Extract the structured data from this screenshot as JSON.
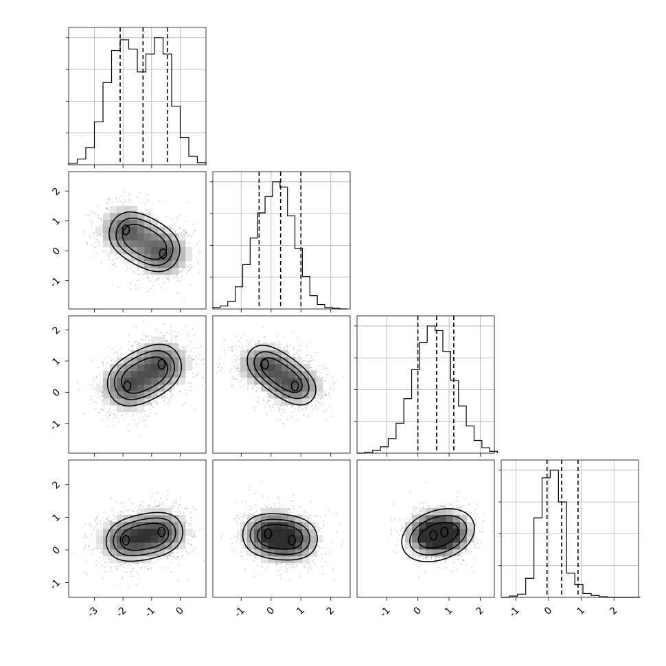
{
  "chart_data": {
    "type": "corner",
    "parameters": 4,
    "ranges": [
      [
        -3.9,
        0.9
      ],
      [
        -1.95,
        2.65
      ],
      [
        -1.95,
        2.45
      ],
      [
        -1.45,
        2.75
      ]
    ],
    "ticks": [
      [
        -3,
        -2,
        -1,
        0
      ],
      [
        -1,
        0,
        1,
        2
      ],
      [
        -1,
        0,
        1,
        2
      ],
      [
        -1,
        0,
        1,
        2
      ]
    ],
    "hist_bin_edges": [
      [
        -3.9,
        -3.6,
        -3.3,
        -3.0,
        -2.7,
        -2.4,
        -2.1,
        -1.8,
        -1.5,
        -1.2,
        -0.9,
        -0.6,
        -0.3,
        0.0,
        0.3,
        0.6,
        0.9
      ],
      [
        -1.95,
        -1.7,
        -1.45,
        -1.2,
        -0.95,
        -0.7,
        -0.45,
        -0.2,
        0.05,
        0.3,
        0.55,
        0.8,
        1.05,
        1.3,
        1.55,
        1.8,
        2.05,
        2.3,
        2.55
      ],
      [
        -1.95,
        -1.7,
        -1.45,
        -1.2,
        -0.95,
        -0.7,
        -0.45,
        -0.2,
        0.05,
        0.3,
        0.55,
        0.8,
        1.05,
        1.3,
        1.55,
        1.8,
        2.05,
        2.3,
        2.55
      ],
      [
        -1.45,
        -1.2,
        -0.95,
        -0.7,
        -0.45,
        -0.2,
        0.05,
        0.3,
        0.55,
        0.8,
        1.05,
        1.3,
        1.55,
        1.8,
        2.05,
        2.3,
        2.55,
        2.8
      ]
    ],
    "hist_counts": [
      [
        2,
        8,
        24,
        60,
        115,
        160,
        175,
        162,
        130,
        155,
        178,
        155,
        82,
        38,
        12,
        3
      ],
      [
        2,
        4,
        10,
        30,
        60,
        96,
        130,
        152,
        172,
        165,
        126,
        82,
        44,
        18,
        6,
        2,
        1,
        0
      ],
      [
        0,
        1,
        3,
        7,
        16,
        33,
        60,
        92,
        122,
        140,
        135,
        112,
        80,
        52,
        30,
        14,
        6,
        2
      ],
      [
        0,
        2,
        5,
        30,
        125,
        188,
        200,
        150,
        38,
        20,
        6,
        3,
        1,
        0,
        0,
        0,
        0
      ]
    ],
    "quantiles_16_50_84": [
      [
        -2.1,
        -1.3,
        -0.45
      ],
      [
        -0.4,
        0.32,
        1.0
      ],
      [
        0.0,
        0.6,
        1.15
      ],
      [
        -0.05,
        0.4,
        0.9
      ]
    ],
    "pair_panels": [
      {
        "x": 0,
        "y": 1,
        "levels": [
          {
            "center": [
              -1.25,
              0.3
            ],
            "sx": 1.3,
            "sy": 1.0,
            "rot": -28,
            "lobe_sep": 1.3
          },
          {
            "center": [
              -1.25,
              0.3
            ],
            "sx": 1.05,
            "sy": 0.78,
            "rot": -28,
            "lobe_sep": 1.3
          },
          {
            "center": [
              -1.25,
              0.3
            ],
            "sx": 0.82,
            "sy": 0.55,
            "rot": -28,
            "lobe_sep": 1.3
          }
        ],
        "modes": [
          [
            -1.9,
            0.7
          ],
          [
            -0.6,
            -0.1
          ]
        ]
      },
      {
        "x": 0,
        "y": 2,
        "levels": [
          {
            "center": [
              -1.25,
              0.55
            ],
            "sx": 1.35,
            "sy": 1.0,
            "rot": 25,
            "lobe_sep": 1.3
          },
          {
            "center": [
              -1.25,
              0.55
            ],
            "sx": 1.1,
            "sy": 0.78,
            "rot": 25,
            "lobe_sep": 1.3
          },
          {
            "center": [
              -1.25,
              0.55
            ],
            "sx": 0.85,
            "sy": 0.56,
            "rot": 25,
            "lobe_sep": 1.3
          }
        ],
        "modes": [
          [
            -1.85,
            0.2
          ],
          [
            -0.65,
            0.9
          ]
        ]
      },
      {
        "x": 0,
        "y": 3,
        "levels": [
          {
            "center": [
              -1.25,
              0.4
            ],
            "sx": 1.35,
            "sy": 0.85,
            "rot": 10,
            "lobe_sep": 1.3
          },
          {
            "center": [
              -1.25,
              0.4
            ],
            "sx": 1.1,
            "sy": 0.65,
            "rot": 10,
            "lobe_sep": 1.3
          },
          {
            "center": [
              -1.25,
              0.4
            ],
            "sx": 0.85,
            "sy": 0.46,
            "rot": 10,
            "lobe_sep": 1.3
          }
        ],
        "modes": [
          [
            -1.9,
            0.3
          ],
          [
            -0.65,
            0.55
          ]
        ]
      },
      {
        "x": 1,
        "y": 2,
        "levels": [
          {
            "center": [
              0.35,
              0.55
            ],
            "sx": 1.3,
            "sy": 0.78,
            "rot": -35,
            "lobe_sep": 0.9
          },
          {
            "center": [
              0.35,
              0.55
            ],
            "sx": 1.05,
            "sy": 0.58,
            "rot": -35,
            "lobe_sep": 0.9
          },
          {
            "center": [
              0.35,
              0.55
            ],
            "sx": 0.8,
            "sy": 0.4,
            "rot": -35,
            "lobe_sep": 0.9
          }
        ],
        "modes": [
          [
            -0.2,
            0.9
          ],
          [
            0.8,
            0.2
          ]
        ]
      },
      {
        "x": 1,
        "y": 3,
        "levels": [
          {
            "center": [
              0.3,
              0.4
            ],
            "sx": 1.25,
            "sy": 0.85,
            "rot": -5,
            "lobe_sep": 0.8
          },
          {
            "center": [
              0.3,
              0.4
            ],
            "sx": 1.0,
            "sy": 0.64,
            "rot": -5,
            "lobe_sep": 0.8
          },
          {
            "center": [
              0.3,
              0.4
            ],
            "sx": 0.76,
            "sy": 0.45,
            "rot": -5,
            "lobe_sep": 0.8
          }
        ],
        "modes": [
          [
            -0.1,
            0.5
          ],
          [
            0.7,
            0.3
          ]
        ]
      },
      {
        "x": 2,
        "y": 3,
        "levels": [
          {
            "center": [
              0.65,
              0.45
            ],
            "sx": 1.2,
            "sy": 0.78,
            "rot": 18,
            "lobe_sep": 0.3
          },
          {
            "center": [
              0.65,
              0.45
            ],
            "sx": 0.94,
            "sy": 0.57,
            "rot": 18,
            "lobe_sep": 0.3
          },
          {
            "center": [
              0.65,
              0.45
            ],
            "sx": 0.66,
            "sy": 0.36,
            "rot": 18,
            "lobe_sep": 0.3
          }
        ],
        "modes": [
          [
            0.5,
            0.45
          ],
          [
            0.85,
            0.55
          ]
        ]
      }
    ],
    "xlabel": "",
    "ylabel": "",
    "grid": true
  }
}
